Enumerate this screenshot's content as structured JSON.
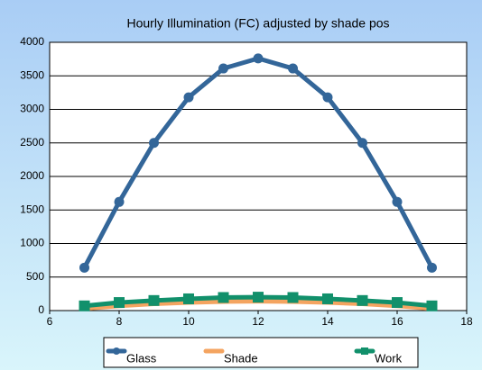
{
  "chart_data": {
    "type": "line",
    "title": "Hourly Illumination (FC) adjusted by shade pos",
    "x": [
      7,
      8,
      9,
      10,
      11,
      12,
      13,
      14,
      15,
      16,
      17
    ],
    "series": [
      {
        "name": "Glass",
        "color": "#336699",
        "marker": "circle",
        "values": [
          640,
          1620,
          2500,
          3180,
          3610,
          3760,
          3610,
          3180,
          2500,
          1620,
          640
        ]
      },
      {
        "name": "Shade",
        "color": "#f4a460",
        "marker": "none",
        "values": [
          30,
          70,
          100,
          120,
          135,
          140,
          135,
          120,
          100,
          70,
          30
        ]
      },
      {
        "name": "Work",
        "color": "#11906b",
        "marker": "square",
        "values": [
          70,
          120,
          150,
          175,
          195,
          200,
          195,
          175,
          150,
          120,
          70
        ]
      }
    ],
    "xlim": [
      6,
      18
    ],
    "xticks": [
      6,
      8,
      10,
      12,
      14,
      16,
      18
    ],
    "ylim": [
      0,
      4000
    ],
    "yticks": [
      0,
      500,
      1000,
      1500,
      2000,
      2500,
      3000,
      3500,
      4000
    ],
    "grid": true,
    "legend": "bottom"
  }
}
